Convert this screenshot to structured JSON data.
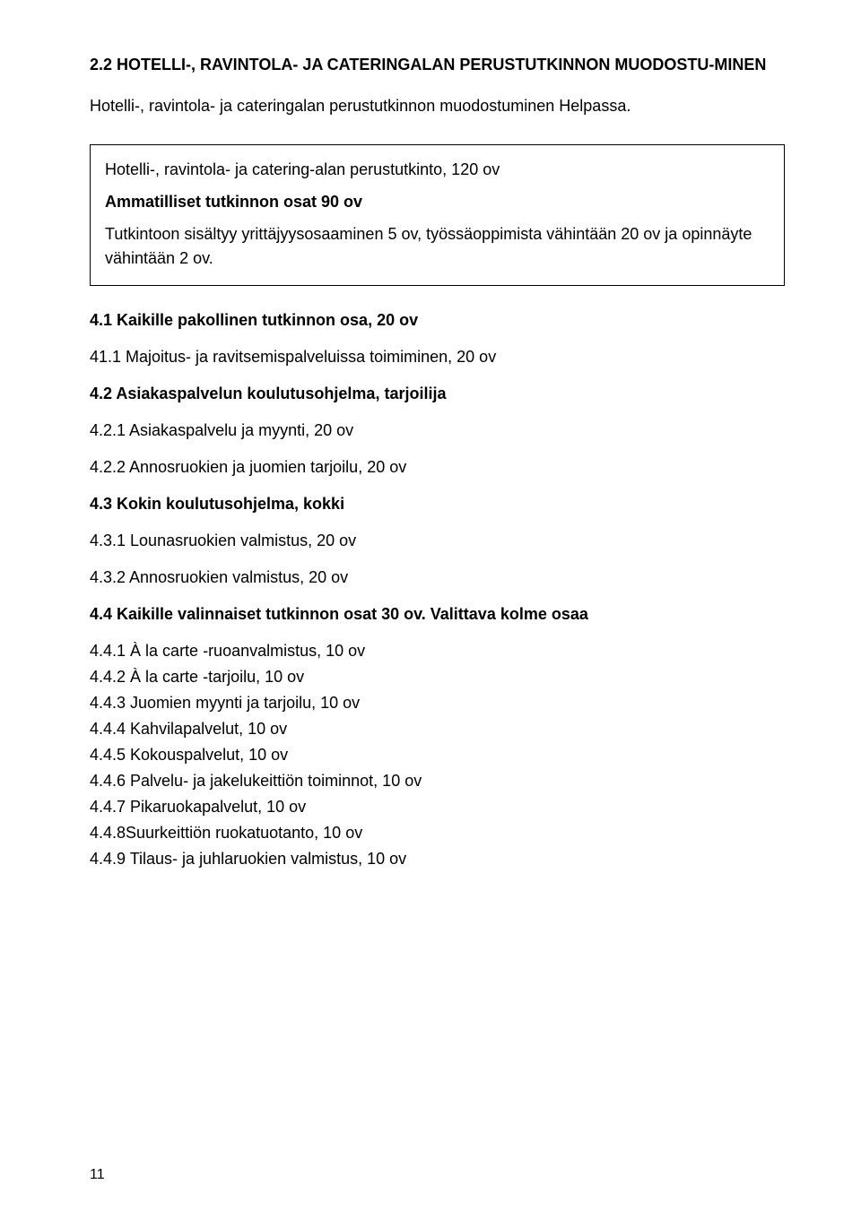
{
  "heading": "2.2 HOTELLI-, RAVINTOLA- JA CATERINGALAN PERUSTUTKINNON MUODOSTU-MINEN",
  "intro": "Hotelli-, ravintola- ja cateringalan perustutkinnon muodostuminen Helpassa.",
  "box": {
    "title": "Hotelli-, ravintola- ja catering-alan perustutkinto, 120 ov",
    "sub": "Ammatilliset tutkinnon osat 90 ov",
    "body": "Tutkintoon sisältyy yrittäjyysosaaminen 5 ov, työssäoppimista vähintään 20 ov ja opinnäyte vähintään 2 ov."
  },
  "sections": {
    "s41": {
      "heading": "4.1 Kaikille pakollinen tutkinnon osa, 20 ov",
      "items": [
        "41.1 Majoitus- ja ravitsemispalveluissa toimiminen, 20 ov"
      ]
    },
    "s42": {
      "heading": "4.2 Asiakaspalvelun koulutusohjelma, tarjoilija",
      "items": [
        "4.2.1 Asiakaspalvelu ja myynti, 20 ov",
        "4.2.2 Annosruokien ja juomien tarjoilu, 20 ov"
      ]
    },
    "s43": {
      "heading": "4.3 Kokin koulutusohjelma, kokki",
      "items": [
        "4.3.1 Lounasruokien valmistus, 20 ov",
        "4.3.2 Annosruokien valmistus, 20 ov"
      ]
    },
    "s44": {
      "heading": "4.4 Kaikille valinnaiset tutkinnon osat 30 ov. Valittava kolme osaa",
      "items": [
        "4.4.1 À la carte -ruoanvalmistus, 10 ov",
        "4.4.2 À la carte -tarjoilu, 10 ov",
        "4.4.3 Juomien myynti ja tarjoilu, 10 ov",
        "4.4.4 Kahvilapalvelut, 10 ov",
        "4.4.5 Kokouspalvelut, 10 ov",
        "4.4.6 Palvelu- ja jakelukeittiön toiminnot, 10 ov",
        "4.4.7 Pikaruokapalvelut, 10 ov",
        "4.4.8Suurkeittiön ruokatuotanto, 10 ov",
        "4.4.9 Tilaus- ja juhlaruokien valmistus, 10 ov"
      ]
    }
  },
  "page_number": "11"
}
